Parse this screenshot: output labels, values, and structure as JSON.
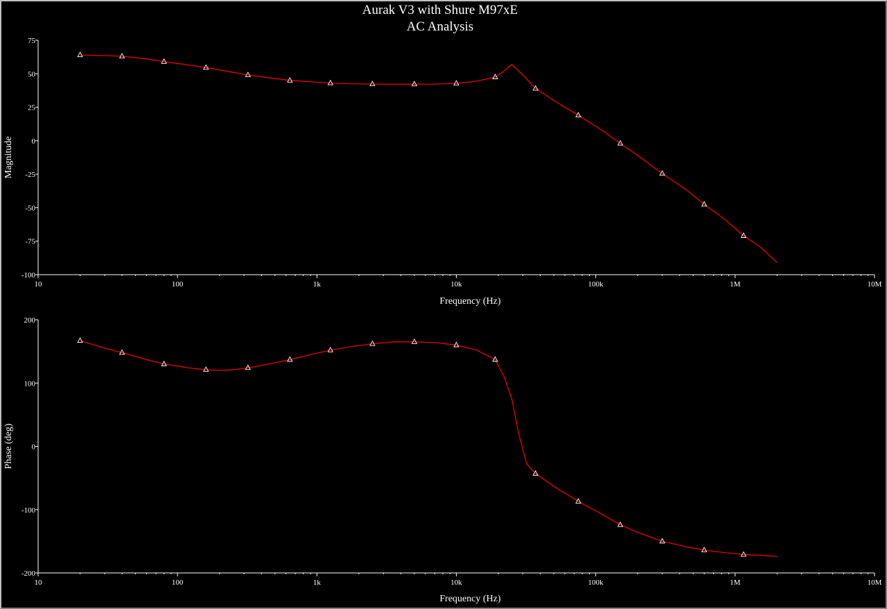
{
  "title_line1": "Aurak V3 with Shure M97xE",
  "title_line2": "AC Analysis",
  "colors": {
    "background": "#000000",
    "axis": "#ffffff",
    "trace": "#ff0000",
    "marker": "#ffffff"
  },
  "chart_data": [
    {
      "type": "line",
      "xscale": "log",
      "xlabel": "Frequency (Hz)",
      "ylabel": "Magnitude",
      "xlim": [
        10,
        10000000
      ],
      "ylim": [
        -100,
        75
      ],
      "xticks": [
        {
          "v": 10,
          "label": "10"
        },
        {
          "v": 100,
          "label": "100"
        },
        {
          "v": 1000,
          "label": "1k"
        },
        {
          "v": 10000,
          "label": "10k"
        },
        {
          "v": 100000,
          "label": "100k"
        },
        {
          "v": 1000000,
          "label": "1M"
        },
        {
          "v": 10000000,
          "label": "10M"
        }
      ],
      "yticks": [
        {
          "v": 75,
          "label": "75"
        },
        {
          "v": 50,
          "label": "50"
        },
        {
          "v": 25,
          "label": "25"
        },
        {
          "v": 0,
          "label": "0"
        },
        {
          "v": -25,
          "label": "-25"
        },
        {
          "v": -50,
          "label": "-50"
        },
        {
          "v": -75,
          "label": "-75"
        },
        {
          "v": -100,
          "label": "-100"
        }
      ],
      "series": [
        {
          "color": "#ff0000",
          "x": [
            20,
            30,
            40,
            60,
            80,
            120,
            160,
            220,
            320,
            450,
            640,
            900,
            1250,
            1800,
            2500,
            3500,
            5000,
            7000,
            10000,
            14000,
            19000,
            22000,
            25000,
            30000,
            37000,
            50000,
            75000,
            110000,
            150000,
            200000,
            300000,
            450000,
            600000,
            850000,
            1150000,
            1500000,
            2000000
          ],
          "y": [
            64,
            63.5,
            63,
            61,
            59,
            56.5,
            54.5,
            52,
            49,
            47,
            45,
            44,
            43,
            42.5,
            42.3,
            42.2,
            42.2,
            42.3,
            42.8,
            44.5,
            47.5,
            52,
            57,
            49,
            39,
            30,
            19,
            8,
            -2,
            -11,
            -24.5,
            -37,
            -47.5,
            -59,
            -71,
            -79,
            -91
          ]
        }
      ],
      "markers": {
        "shape": "triangle",
        "x": [
          20,
          40,
          80,
          160,
          320,
          640,
          1250,
          2500,
          5000,
          10000,
          19000,
          37000,
          75000,
          150000,
          300000,
          600000,
          1150000
        ],
        "y": [
          64,
          63,
          59,
          54.5,
          49,
          45,
          43,
          42.3,
          42.2,
          42.8,
          47.5,
          39,
          19,
          -2,
          -24.5,
          -47.5,
          -71
        ]
      }
    },
    {
      "type": "line",
      "xscale": "log",
      "xlabel": "Frequency (Hz)",
      "ylabel": "Phase (deg)",
      "xlim": [
        10,
        10000000
      ],
      "ylim": [
        -200,
        200
      ],
      "xticks": [
        {
          "v": 10,
          "label": "10"
        },
        {
          "v": 100,
          "label": "100"
        },
        {
          "v": 1000,
          "label": "1k"
        },
        {
          "v": 10000,
          "label": "10k"
        },
        {
          "v": 100000,
          "label": "100k"
        },
        {
          "v": 1000000,
          "label": "1M"
        },
        {
          "v": 10000000,
          "label": "10M"
        }
      ],
      "yticks": [
        {
          "v": 200,
          "label": "200"
        },
        {
          "v": 100,
          "label": "100"
        },
        {
          "v": 0,
          "label": "0"
        },
        {
          "v": -100,
          "label": "-100"
        },
        {
          "v": -200,
          "label": "-200"
        }
      ],
      "series": [
        {
          "color": "#ff0000",
          "x": [
            20,
            30,
            40,
            60,
            80,
            120,
            160,
            200,
            250,
            320,
            450,
            640,
            900,
            1250,
            1800,
            2500,
            3500,
            5000,
            7000,
            10000,
            14000,
            19000,
            22000,
            25000,
            28000,
            32000,
            37000,
            50000,
            75000,
            110000,
            150000,
            200000,
            300000,
            450000,
            600000,
            850000,
            1150000,
            1500000,
            2000000
          ],
          "y": [
            167,
            155,
            148,
            137,
            130,
            124,
            121,
            120,
            121,
            124,
            130,
            137,
            145,
            152,
            158,
            162,
            165,
            165,
            164,
            160,
            152,
            137,
            110,
            75,
            20,
            -28,
            -43,
            -63,
            -87,
            -107,
            -124,
            -136,
            -150,
            -159,
            -164,
            -168,
            -171,
            -172,
            -174
          ]
        }
      ],
      "markers": {
        "shape": "triangle",
        "x": [
          20,
          40,
          80,
          160,
          320,
          640,
          1250,
          2500,
          5000,
          10000,
          19000,
          37000,
          75000,
          150000,
          300000,
          600000,
          1150000
        ],
        "y": [
          167,
          148,
          130,
          121,
          124,
          137,
          152,
          162,
          165,
          160,
          137,
          -43,
          -87,
          -124,
          -150,
          -164,
          -171
        ]
      }
    }
  ]
}
